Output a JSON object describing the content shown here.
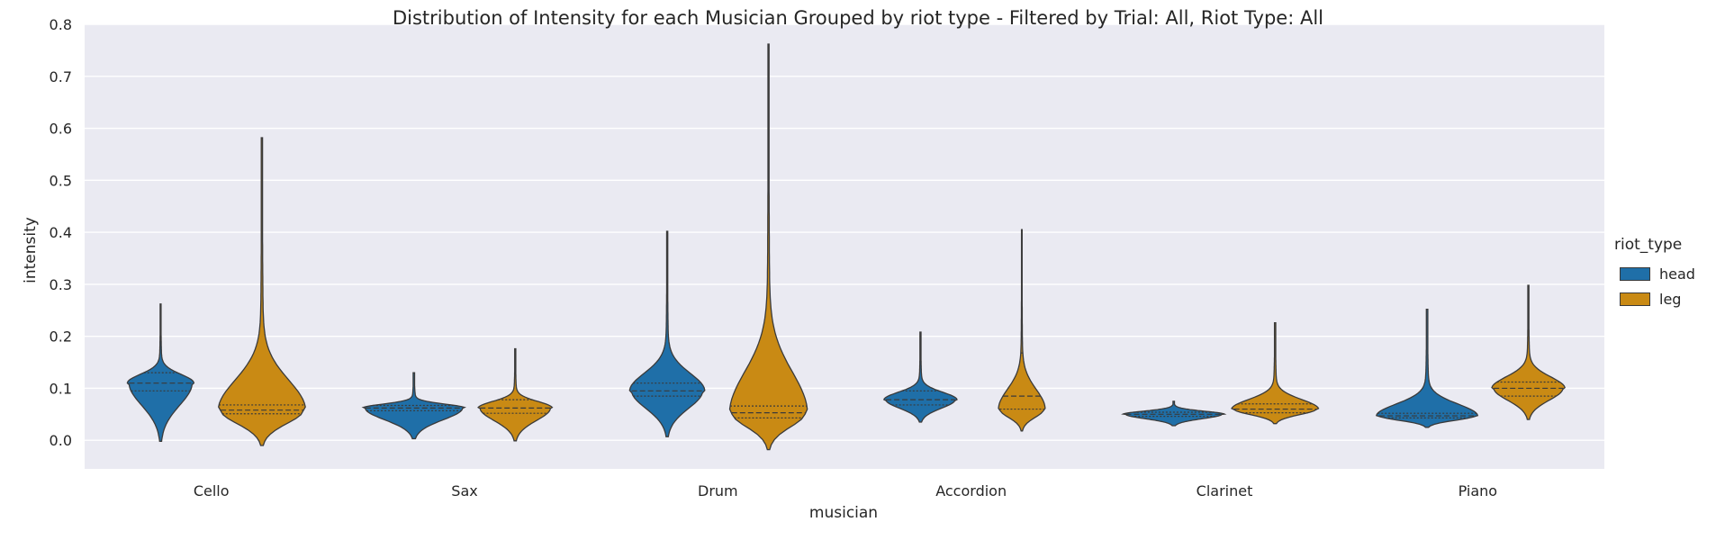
{
  "chart_data": {
    "type": "violin",
    "title": "Distribution of Intensity for each Musician Grouped by riot type - Filtered by Trial: All, Riot Type: All",
    "xlabel": "musician",
    "ylabel": "intensity",
    "categories": [
      "Cello",
      "Sax",
      "Drum",
      "Accordion",
      "Clarinet",
      "Piano"
    ],
    "ylim": [
      -0.055,
      0.8
    ],
    "yticks": [
      "0.0",
      "0.1",
      "0.2",
      "0.3",
      "0.4",
      "0.5",
      "0.6",
      "0.7",
      "0.8"
    ],
    "grid": true,
    "legend": {
      "title": "riot_type",
      "placement": "right"
    },
    "series": [
      {
        "name": "head",
        "color": "#1f6fa8",
        "violins": [
          {
            "min": -0.002,
            "q1": 0.095,
            "median": 0.11,
            "q3": 0.13,
            "max": 0.262,
            "mode": 0.11
          },
          {
            "min": 0.003,
            "q1": 0.057,
            "median": 0.062,
            "q3": 0.067,
            "max": 0.13,
            "mode": 0.062
          },
          {
            "min": 0.007,
            "q1": 0.085,
            "median": 0.095,
            "q3": 0.11,
            "max": 0.402,
            "mode": 0.095
          },
          {
            "min": 0.035,
            "q1": 0.068,
            "median": 0.078,
            "q3": 0.095,
            "max": 0.208,
            "mode": 0.078
          },
          {
            "min": 0.028,
            "q1": 0.046,
            "median": 0.05,
            "q3": 0.054,
            "max": 0.075,
            "mode": 0.05
          },
          {
            "min": 0.025,
            "q1": 0.043,
            "median": 0.047,
            "q3": 0.052,
            "max": 0.252,
            "mode": 0.047
          }
        ]
      },
      {
        "name": "leg",
        "color": "#c98a14",
        "violins": [
          {
            "min": -0.01,
            "q1": 0.051,
            "median": 0.058,
            "q3": 0.068,
            "max": 0.582,
            "mode": 0.058
          },
          {
            "min": -0.001,
            "q1": 0.052,
            "median": 0.062,
            "q3": 0.078,
            "max": 0.176,
            "mode": 0.062
          },
          {
            "min": -0.018,
            "q1": 0.043,
            "median": 0.053,
            "q3": 0.066,
            "max": 0.762,
            "mode": 0.053
          },
          {
            "min": 0.018,
            "q1": 0.06,
            "median": 0.085,
            "q3": 0.168,
            "max": 0.405,
            "mode": 0.06
          },
          {
            "min": 0.032,
            "q1": 0.053,
            "median": 0.06,
            "q3": 0.07,
            "max": 0.226,
            "mode": 0.06
          },
          {
            "min": 0.04,
            "q1": 0.085,
            "median": 0.1,
            "q3": 0.112,
            "max": 0.298,
            "mode": 0.1
          }
        ]
      }
    ]
  }
}
